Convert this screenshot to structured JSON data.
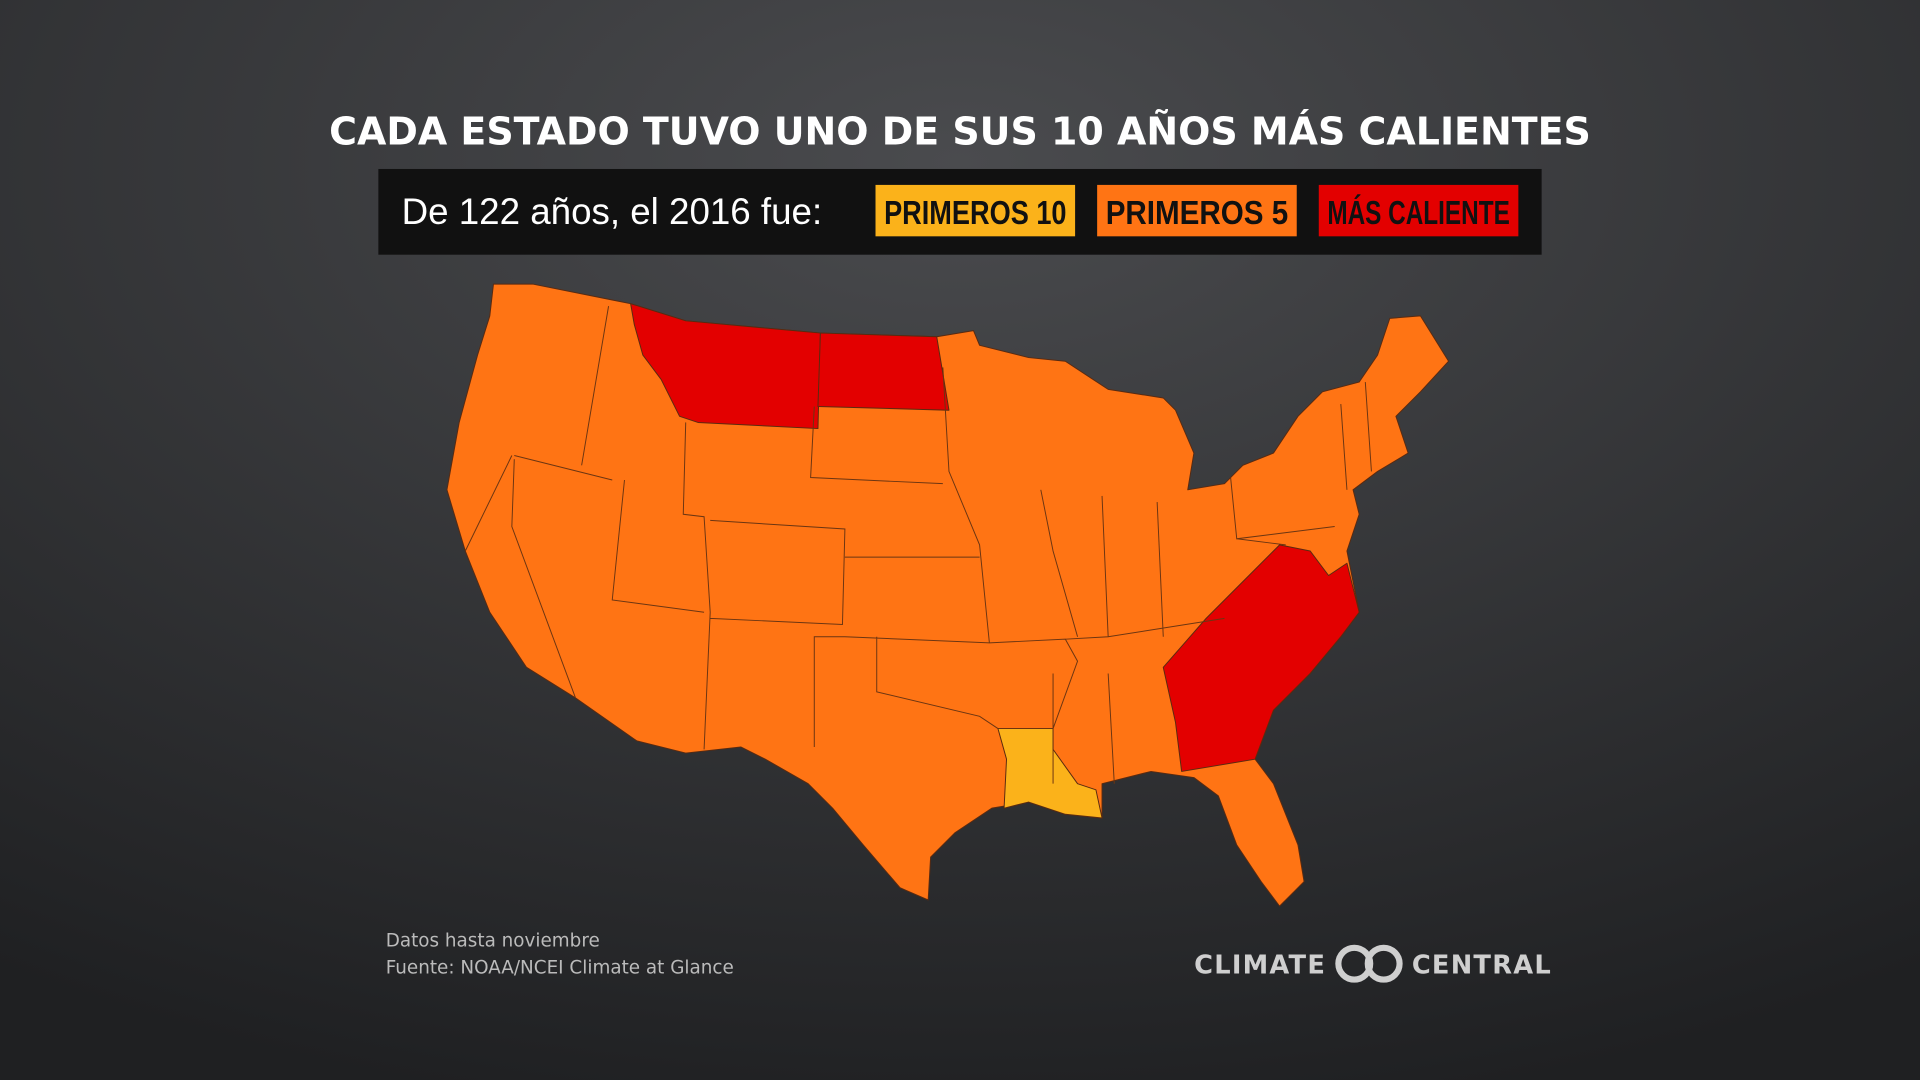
{
  "title": "CADA ESTADO TUVO UNO DE SUS 10 AÑOS MÁS CALIENTES",
  "legend": {
    "label": "De 122 años, el 2016 fue:",
    "items": [
      {
        "label": "PRIMEROS 10",
        "color": "#fbb21a"
      },
      {
        "label": "PRIMEROS 5",
        "color": "#ff7414"
      },
      {
        "label": "MÁS CALIENTE",
        "color": "#e30000"
      }
    ]
  },
  "notes": [
    "Datos hasta noviembre",
    "Fuente: NOAA/NCEI Climate at Glance"
  ],
  "logo": {
    "left": "CLIMATE",
    "right": "CENTRAL"
  }
}
